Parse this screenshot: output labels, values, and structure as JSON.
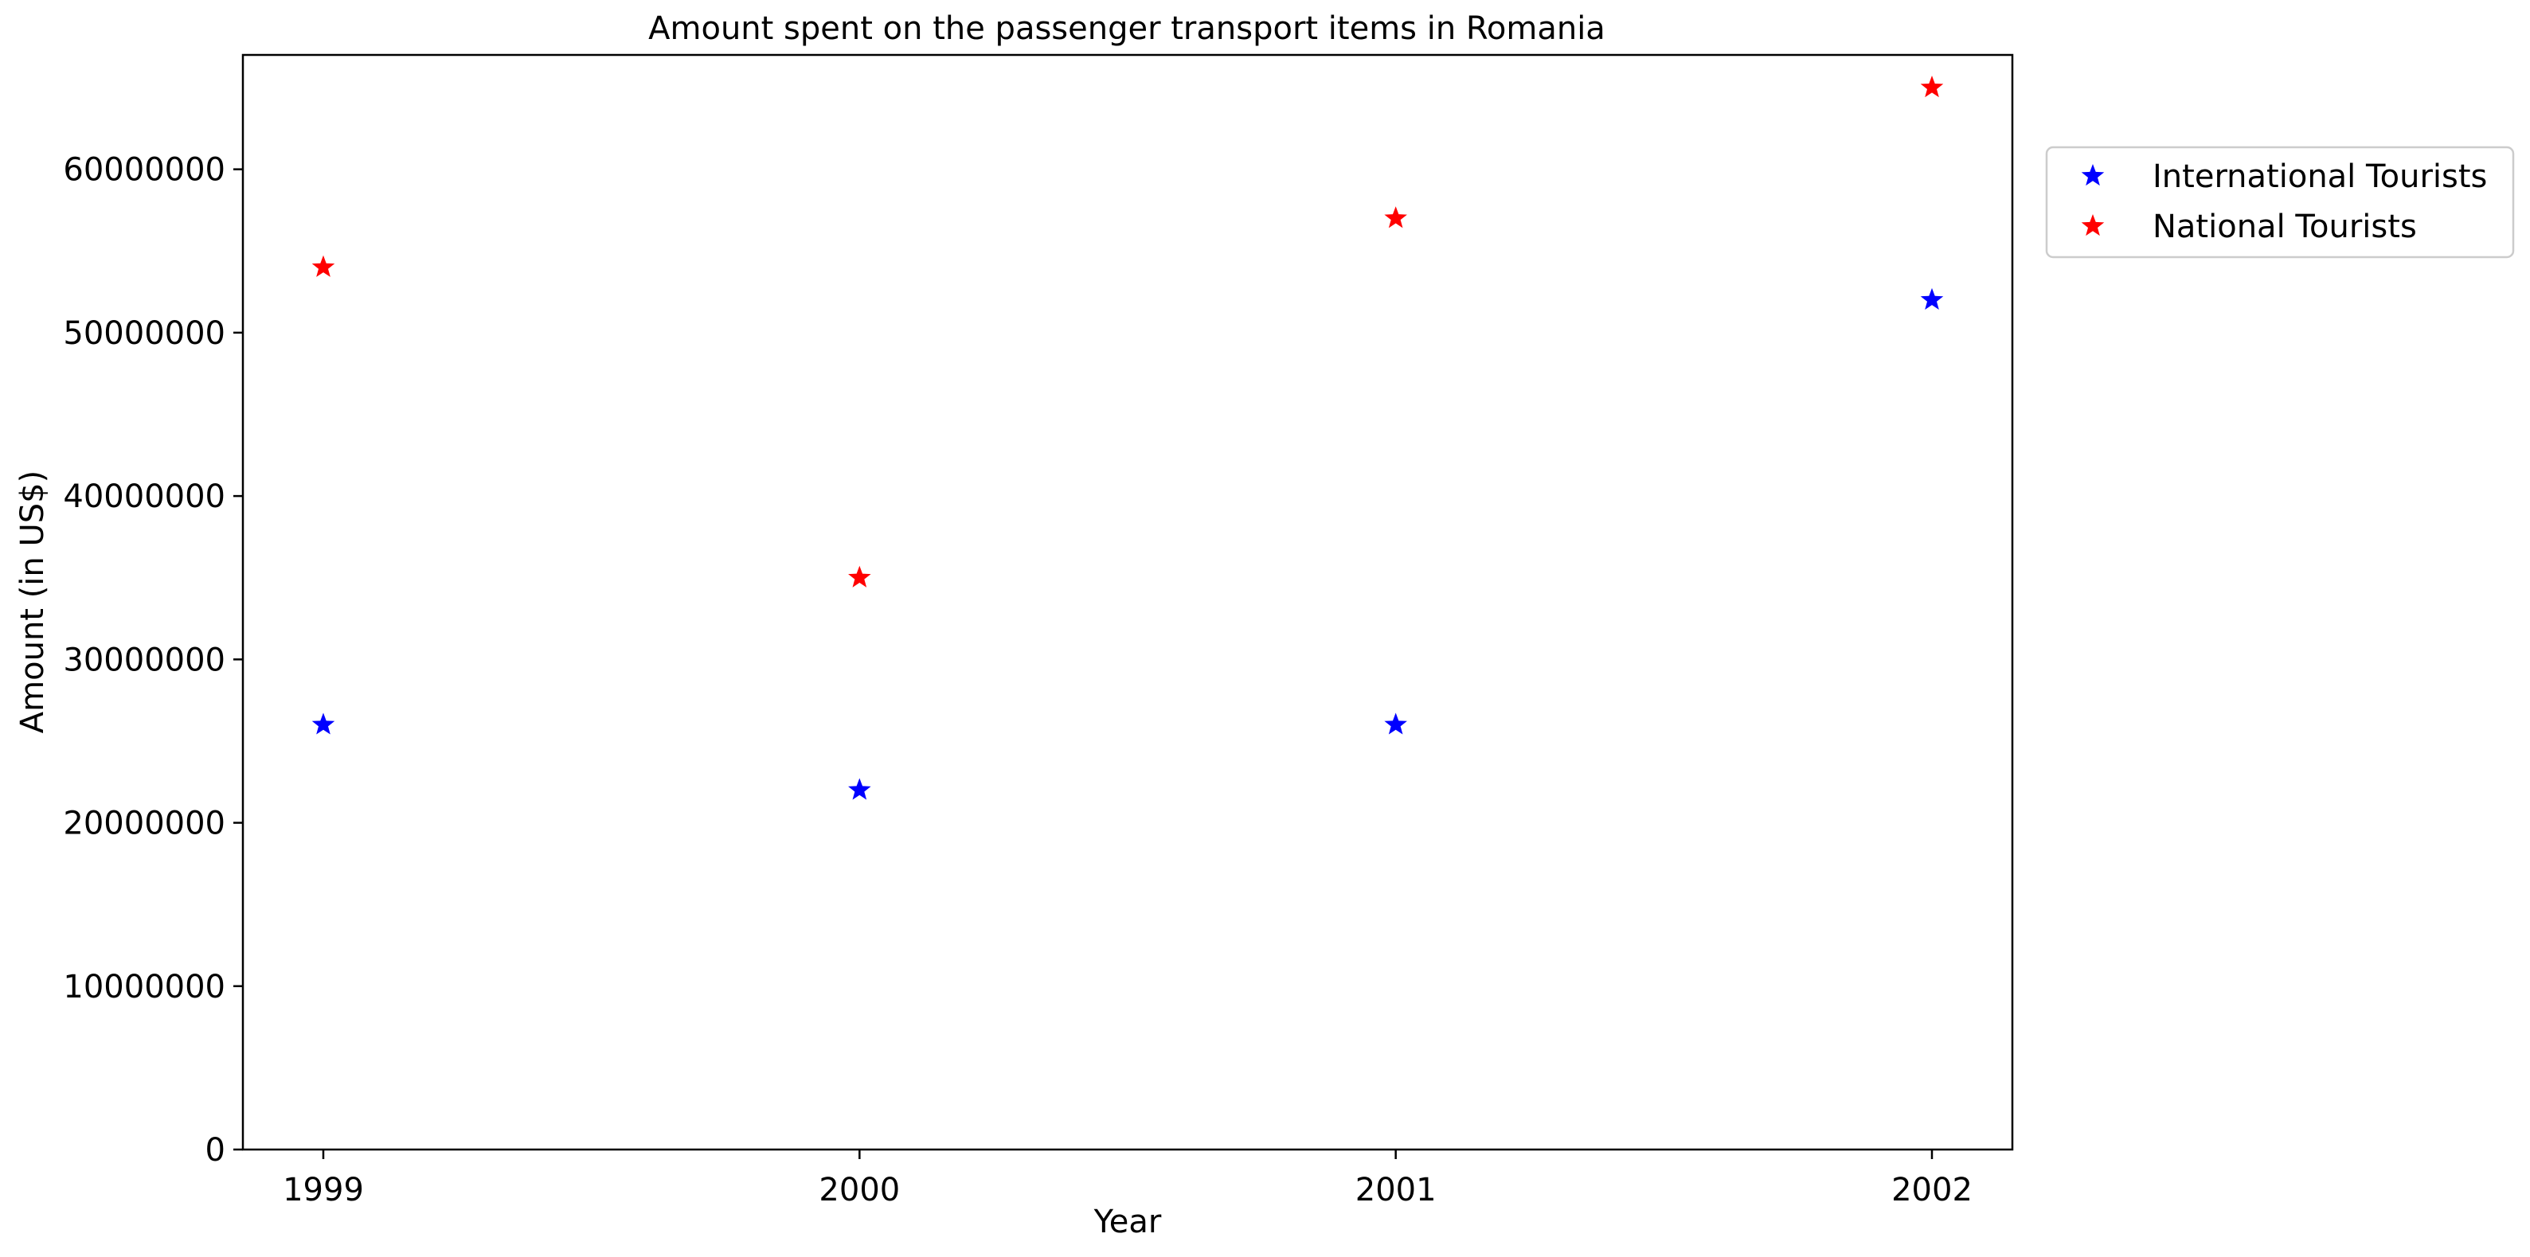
{
  "chart_data": {
    "type": "scatter",
    "title": "Amount spent on the passenger transport items in Romania",
    "xlabel": "Year",
    "ylabel": "Amount (in US$)",
    "x": [
      "1999",
      "2000",
      "2001",
      "2002"
    ],
    "ylim": [
      0,
      67000000
    ],
    "yticks": [
      "0",
      "10000000",
      "20000000",
      "30000000",
      "40000000",
      "50000000",
      "60000000"
    ],
    "yticks_values": [
      0,
      10000000,
      20000000,
      30000000,
      40000000,
      50000000,
      60000000
    ],
    "marker": "star",
    "legend_position": "outside-right-top",
    "series": [
      {
        "name": "International Tourists",
        "color": "#0000ff",
        "values": [
          26000000,
          22000000,
          26000000,
          52000000
        ]
      },
      {
        "name": "National Tourists",
        "color": "#ff0000",
        "values": [
          54000000,
          35000000,
          57000000,
          65000000
        ]
      }
    ]
  }
}
